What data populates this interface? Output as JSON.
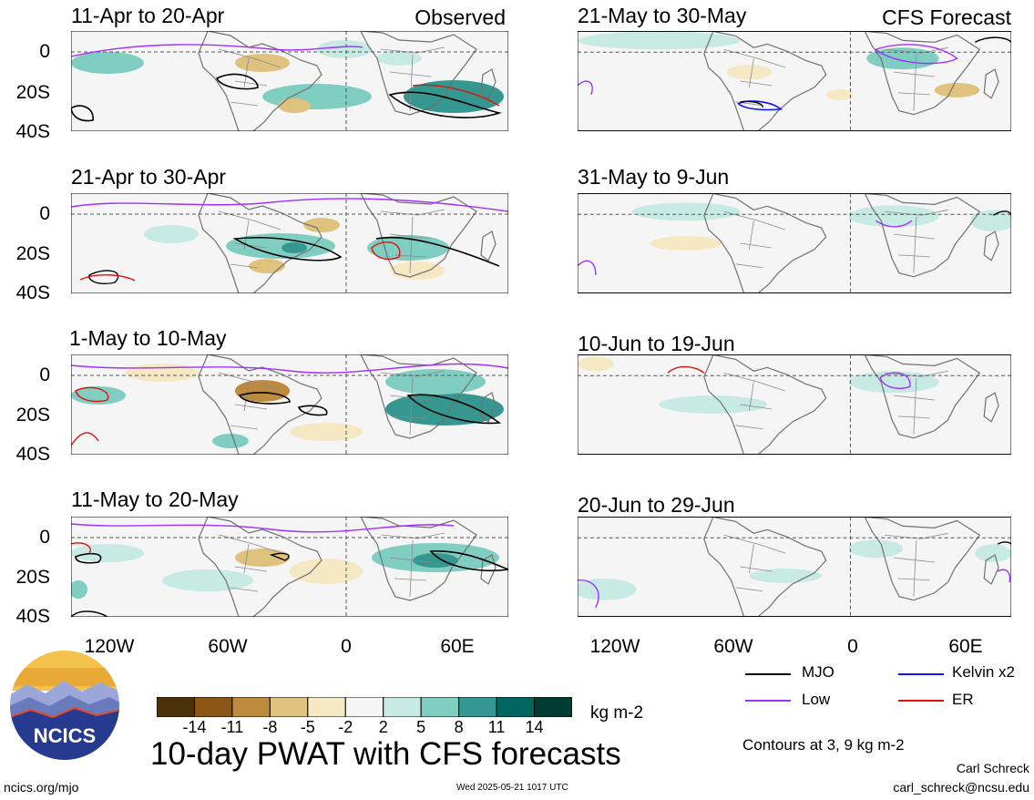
{
  "columns": {
    "left_tag": "Observed",
    "right_tag": "CFS Forecast"
  },
  "panels_left": [
    {
      "title": "11-Apr to 20-Apr"
    },
    {
      "title": "21-Apr to 30-Apr"
    },
    {
      "title": "1-May to 10-May"
    },
    {
      "title": "11-May to 20-May"
    }
  ],
  "panels_right": [
    {
      "title": "21-May to 30-May"
    },
    {
      "title": "31-May to 9-Jun"
    },
    {
      "title": "10-Jun to 19-Jun"
    },
    {
      "title": "20-Jun to 29-Jun"
    }
  ],
  "lat_labels": [
    "0",
    "20S",
    "40S"
  ],
  "lon_labels": [
    "120W",
    "60W",
    "0",
    "60E"
  ],
  "colorbar": {
    "colors": [
      "#4d3209",
      "#8a5717",
      "#bd8b3e",
      "#dfc27d",
      "#f6e8c3",
      "#f5f5f5",
      "#c7eae5",
      "#80cdc1",
      "#35978f",
      "#01665e",
      "#003c30"
    ],
    "labels": [
      "-14",
      "-11",
      "-8",
      "-5",
      "-2",
      "2",
      "5",
      "8",
      "11",
      "14"
    ],
    "units": "kg m-2"
  },
  "legend": {
    "mjo": {
      "label": "MJO",
      "color": "#000000"
    },
    "kelvin": {
      "label": "Kelvin x2",
      "color": "#1010ff"
    },
    "low": {
      "label": "Low",
      "color": "#a030ff"
    },
    "er": {
      "label": "ER",
      "color": "#e01010"
    }
  },
  "contours_note": "Contours at 3, 9 kg m-2",
  "main_title": "10-day PWAT with CFS forecasts",
  "logo_text": "NCICS",
  "footer": {
    "site": "ncics.org/mjo",
    "timestamp": "Wed 2025-05-21 1017 UTC",
    "author": "Carl Schreck",
    "email": "carl_schreck@ncsu.edu"
  }
}
